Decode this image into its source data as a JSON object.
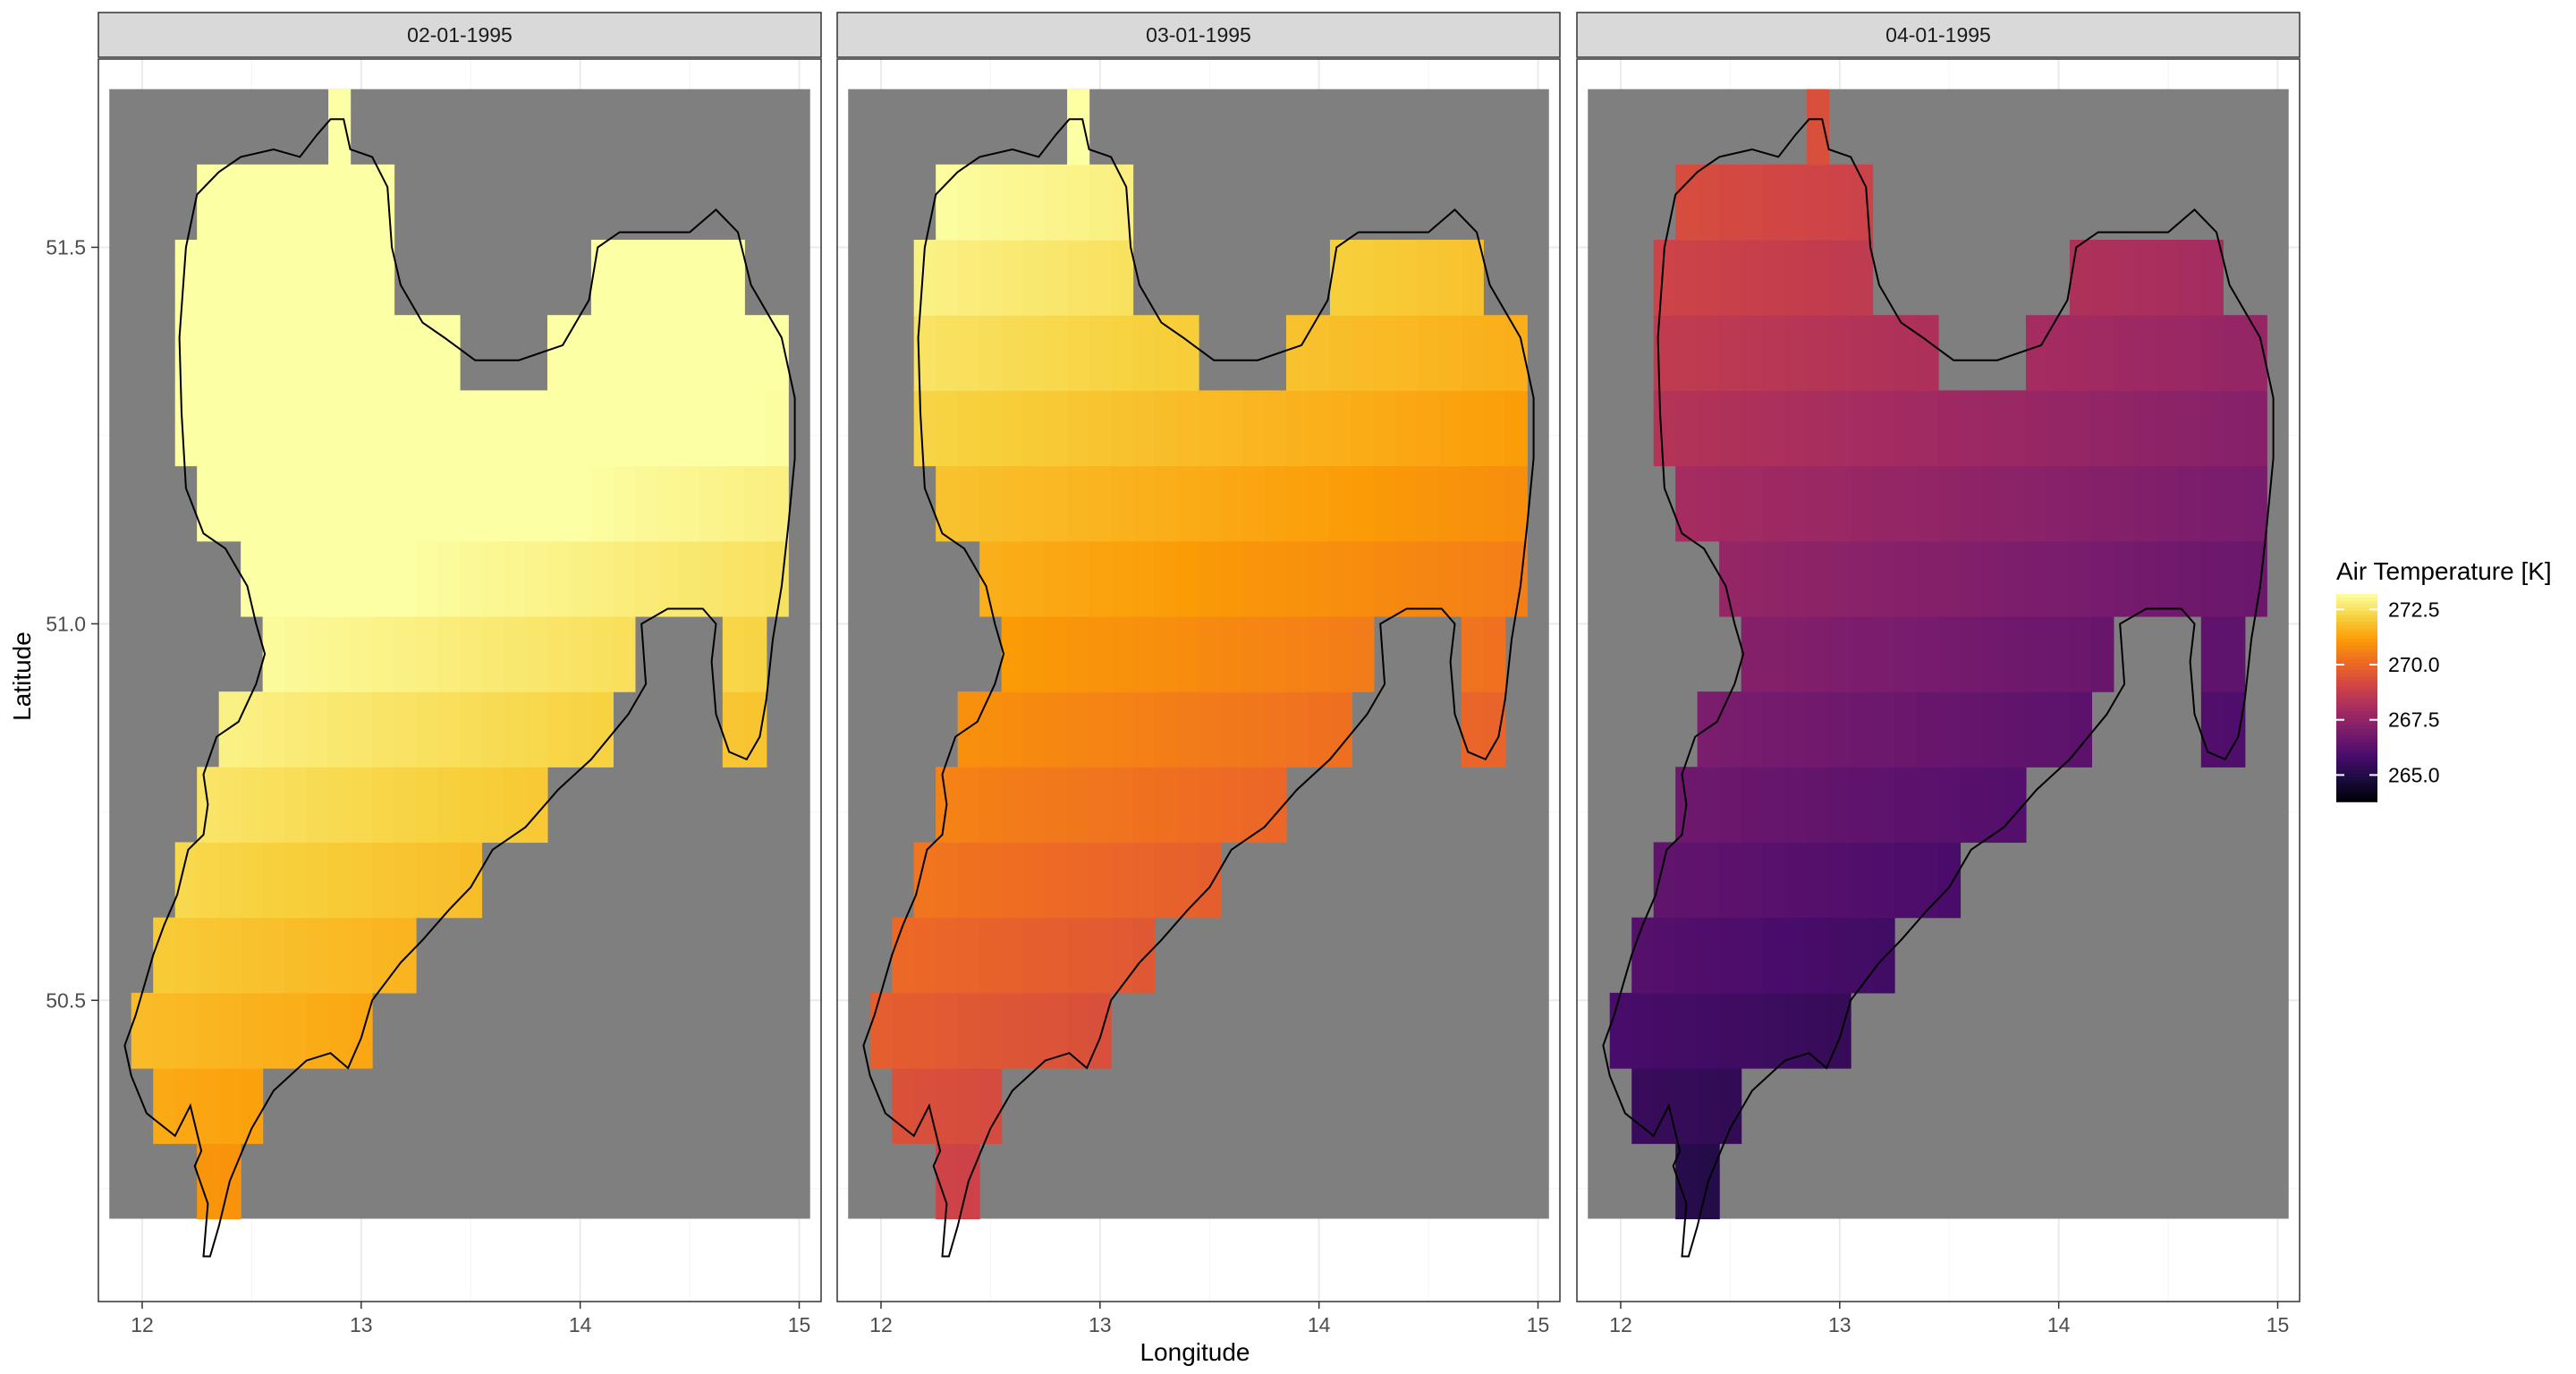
{
  "chart_data": {
    "type": "heatmap",
    "title": "",
    "xlabel": "Longitude",
    "ylabel": "Latitude",
    "xlim": [
      11.8,
      15.1
    ],
    "ylim": [
      50.1,
      51.75
    ],
    "x_ticks": [
      12,
      13,
      14,
      15
    ],
    "x_tick_labels": [
      "12",
      "13",
      "14",
      "15"
    ],
    "y_ticks": [
      50.5,
      51.0,
      51.5
    ],
    "y_tick_labels": [
      "50.5",
      "51.0",
      "51.5"
    ],
    "grid": true,
    "panel_background": "#ffffff",
    "na_fill": "#7f7f7f",
    "grid_extent": {
      "lon": [
        11.85,
        15.05
      ],
      "lat": [
        50.21,
        51.71
      ]
    },
    "facets": [
      "02-01-1995",
      "03-01-1995",
      "04-01-1995"
    ],
    "legend": {
      "title": "Air Temperature [K]",
      "position": "right",
      "palette": "inferno",
      "range": [
        263.8,
        273.2
      ],
      "breaks": [
        272.5,
        270.0,
        267.5,
        265.0
      ],
      "break_labels": [
        "272.5",
        "270.0",
        "267.5",
        "265.0"
      ]
    },
    "series": [
      {
        "name": "02-01-1995",
        "base_offset": 2.9
      },
      {
        "name": "03-01-1995",
        "base_offset": 0.9
      },
      {
        "name": "04-01-1995",
        "base_offset": -3.0
      }
    ],
    "field_model": {
      "base": 269.5,
      "lat_coef": 3.2,
      "lat_ref": 50.85,
      "lon_coef": -0.4,
      "lon_ref": 13.5
    },
    "outline": [
      [
        12.28,
        50.16
      ],
      [
        12.3,
        50.23
      ],
      [
        12.24,
        50.28
      ],
      [
        12.27,
        50.3
      ],
      [
        12.22,
        50.36
      ],
      [
        12.15,
        50.32
      ],
      [
        12.02,
        50.35
      ],
      [
        11.95,
        50.4
      ],
      [
        11.92,
        50.44
      ],
      [
        11.97,
        50.48
      ],
      [
        12.05,
        50.56
      ],
      [
        12.1,
        50.6
      ],
      [
        12.16,
        50.64
      ],
      [
        12.21,
        50.7
      ],
      [
        12.28,
        50.72
      ],
      [
        12.3,
        50.76
      ],
      [
        12.28,
        50.8
      ],
      [
        12.34,
        50.85
      ],
      [
        12.44,
        50.87
      ],
      [
        12.52,
        50.92
      ],
      [
        12.56,
        50.96
      ],
      [
        12.52,
        51.0
      ],
      [
        12.48,
        51.05
      ],
      [
        12.38,
        51.1
      ],
      [
        12.28,
        51.12
      ],
      [
        12.2,
        51.18
      ],
      [
        12.18,
        51.28
      ],
      [
        12.17,
        51.38
      ],
      [
        12.2,
        51.5
      ],
      [
        12.25,
        51.57
      ],
      [
        12.35,
        51.6
      ],
      [
        12.45,
        51.62
      ],
      [
        12.6,
        51.63
      ],
      [
        12.72,
        51.62
      ],
      [
        12.8,
        51.65
      ],
      [
        12.86,
        51.67
      ],
      [
        12.92,
        51.67
      ],
      [
        12.95,
        51.63
      ],
      [
        13.05,
        51.62
      ],
      [
        13.12,
        51.58
      ],
      [
        13.14,
        51.5
      ],
      [
        13.18,
        51.45
      ],
      [
        13.28,
        51.4
      ],
      [
        13.38,
        51.38
      ],
      [
        13.52,
        51.35
      ],
      [
        13.72,
        51.35
      ],
      [
        13.92,
        51.37
      ],
      [
        14.04,
        51.43
      ],
      [
        14.08,
        51.5
      ],
      [
        14.18,
        51.52
      ],
      [
        14.35,
        51.52
      ],
      [
        14.5,
        51.52
      ],
      [
        14.62,
        51.55
      ],
      [
        14.72,
        51.52
      ],
      [
        14.78,
        51.45
      ],
      [
        14.92,
        51.38
      ],
      [
        14.98,
        51.3
      ],
      [
        14.98,
        51.22
      ],
      [
        14.95,
        51.13
      ],
      [
        14.92,
        51.05
      ],
      [
        14.88,
        50.98
      ],
      [
        14.85,
        50.9
      ],
      [
        14.82,
        50.85
      ],
      [
        14.76,
        50.82
      ],
      [
        14.68,
        50.83
      ],
      [
        14.62,
        50.88
      ],
      [
        14.6,
        50.95
      ],
      [
        14.62,
        51.0
      ],
      [
        14.56,
        51.02
      ],
      [
        14.4,
        51.02
      ],
      [
        14.28,
        51.0
      ],
      [
        14.3,
        50.92
      ],
      [
        14.22,
        50.88
      ],
      [
        14.05,
        50.82
      ],
      [
        13.9,
        50.78
      ],
      [
        13.75,
        50.73
      ],
      [
        13.6,
        50.7
      ],
      [
        13.5,
        50.65
      ],
      [
        13.4,
        50.62
      ],
      [
        13.28,
        50.58
      ],
      [
        13.18,
        50.55
      ],
      [
        13.05,
        50.5
      ],
      [
        13.0,
        50.45
      ],
      [
        12.94,
        50.41
      ],
      [
        12.86,
        50.43
      ],
      [
        12.75,
        50.42
      ],
      [
        12.6,
        50.38
      ],
      [
        12.5,
        50.33
      ],
      [
        12.4,
        50.26
      ],
      [
        12.35,
        50.2
      ],
      [
        12.31,
        50.16
      ]
    ]
  }
}
